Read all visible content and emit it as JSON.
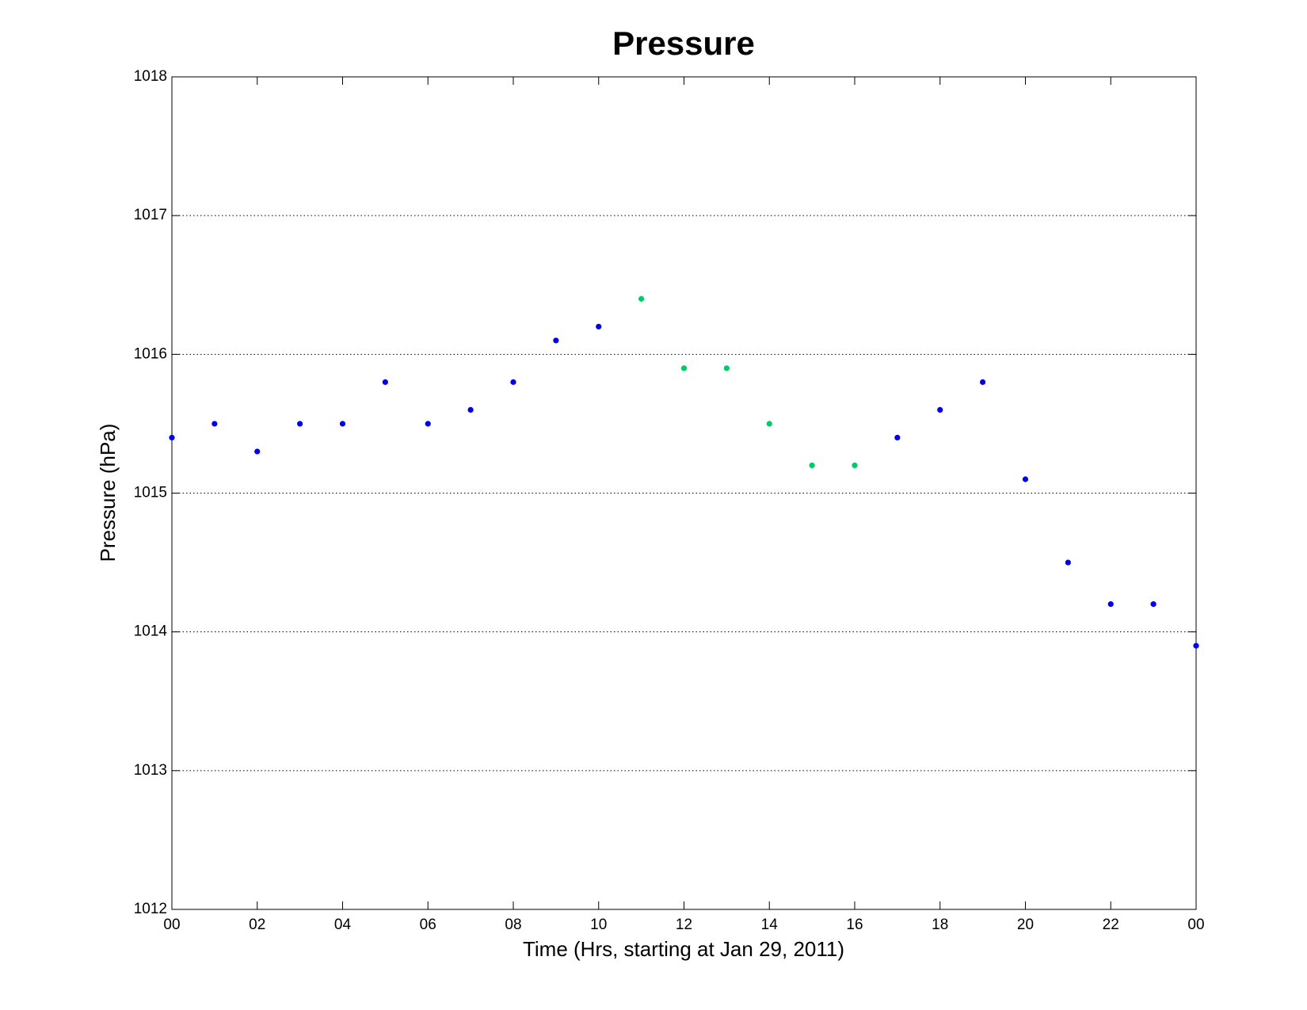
{
  "chart_data": {
    "type": "scatter",
    "title": "Pressure",
    "x_label": "Time (Hrs, starting at Jan 29, 2011)",
    "y_label": "Pressure (hPa)",
    "series": [
      {
        "color": "#0000ee",
        "x": [
          0,
          1,
          2,
          3,
          4,
          5,
          6,
          7,
          8,
          9,
          10,
          17,
          18,
          19,
          20,
          21,
          22,
          23,
          24
        ],
        "values": [
          1015.4,
          1015.5,
          1015.3,
          1015.5,
          1015.5,
          1015.8,
          1015.5,
          1015.6,
          1015.8,
          1016.1,
          1016.2,
          1015.4,
          1015.6,
          1015.8,
          1015.1,
          1014.5,
          1014.2,
          1014.2,
          1013.9
        ]
      },
      {
        "color": "#00cc66",
        "x": [
          11,
          12,
          13,
          14,
          15,
          16
        ],
        "values": [
          1016.4,
          1015.9,
          1015.9,
          1015.5,
          1015.2,
          1015.2
        ]
      }
    ],
    "xlim": [
      0,
      24
    ],
    "xticks": [
      {
        "value": 0,
        "label": "00"
      },
      {
        "value": 2,
        "label": "02"
      },
      {
        "value": 4,
        "label": "04"
      },
      {
        "value": 6,
        "label": "06"
      },
      {
        "value": 8,
        "label": "08"
      },
      10,
      12,
      14,
      16,
      18,
      20,
      22,
      {
        "value": 24,
        "label": "00"
      }
    ],
    "ylim": [
      1012,
      1018
    ],
    "yticks": [
      1012,
      1013,
      1014,
      1015,
      1016,
      1017,
      1018
    ],
    "grid": "y"
  }
}
